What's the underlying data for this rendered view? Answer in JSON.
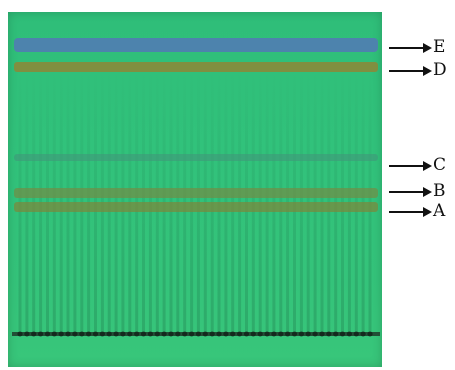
{
  "labels": {
    "E": "E",
    "D": "D",
    "C": "C",
    "B": "B",
    "A": "A"
  },
  "colors": {
    "plate": "#31c27b",
    "band_e": "#4f7fb0",
    "band_d": "#8a8a3a",
    "band_c": "#3f9a7a",
    "band_b": "#6f8f48",
    "band_a": "#7a8a3e",
    "origin": "#1f3a2a",
    "arrow": "#111111"
  }
}
